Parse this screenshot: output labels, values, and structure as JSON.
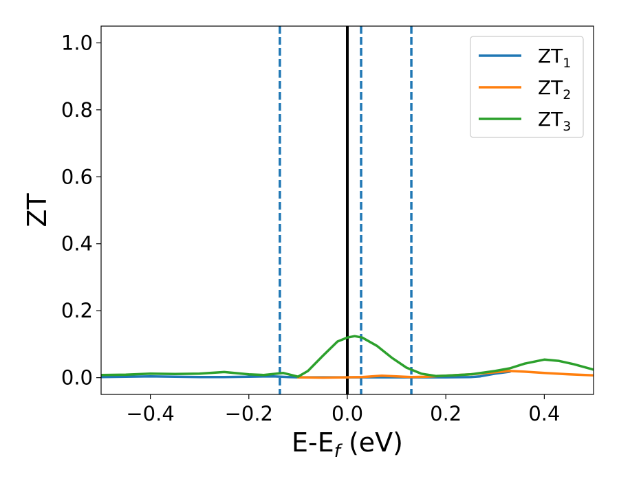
{
  "chart_data": {
    "type": "line",
    "xlabel": "E-E",
    "xlabel_sub": "f",
    "xlabel_unit": " (eV)",
    "ylabel": "ZT",
    "xlim": [
      -0.5,
      0.5
    ],
    "ylim": [
      -0.05,
      1.05
    ],
    "x_ticks": [
      -0.4,
      -0.2,
      0.0,
      0.2,
      0.4
    ],
    "x_tick_labels": [
      "−0.4",
      "−0.2",
      "0.0",
      "0.2",
      "0.4"
    ],
    "y_ticks": [
      0.0,
      0.2,
      0.4,
      0.6,
      0.8,
      1.0
    ],
    "y_tick_labels": [
      "0.0",
      "0.2",
      "0.4",
      "0.6",
      "0.8",
      "1.0"
    ],
    "legend_position": "top-right",
    "grid": false,
    "vlines": [
      {
        "x": -0.137,
        "style": "dashed",
        "color": "#1f77b4"
      },
      {
        "x": 0.0,
        "style": "solid",
        "color": "#000000"
      },
      {
        "x": 0.028,
        "style": "dashed",
        "color": "#1f77b4"
      },
      {
        "x": 0.13,
        "style": "dashed",
        "color": "#1f77b4"
      }
    ],
    "series": [
      {
        "name": "ZT",
        "name_sub": "1",
        "color": "#1f77b4",
        "points": [
          [
            -0.5,
            0.002
          ],
          [
            -0.45,
            0.003
          ],
          [
            -0.4,
            0.004
          ],
          [
            -0.35,
            0.003
          ],
          [
            -0.3,
            0.002
          ],
          [
            -0.25,
            0.002
          ],
          [
            -0.2,
            0.003
          ],
          [
            -0.15,
            0.004
          ],
          [
            -0.12,
            0.002
          ],
          [
            -0.1,
            0.001
          ],
          [
            0.2,
            0.001
          ],
          [
            0.25,
            0.002
          ],
          [
            0.27,
            0.004
          ],
          [
            0.3,
            0.012
          ],
          [
            0.33,
            0.018
          ]
        ]
      },
      {
        "name": "ZT",
        "name_sub": "2",
        "color": "#ff7f0e",
        "points": [
          [
            -0.1,
            0.001
          ],
          [
            -0.05,
            0.0
          ],
          [
            0.0,
            0.001
          ],
          [
            0.03,
            0.002
          ],
          [
            0.07,
            0.006
          ],
          [
            0.1,
            0.004
          ],
          [
            0.13,
            0.002
          ],
          [
            0.16,
            0.003
          ],
          [
            0.2,
            0.006
          ],
          [
            0.25,
            0.01
          ],
          [
            0.3,
            0.016
          ],
          [
            0.33,
            0.02
          ],
          [
            0.36,
            0.018
          ],
          [
            0.4,
            0.014
          ],
          [
            0.45,
            0.01
          ],
          [
            0.5,
            0.007
          ]
        ]
      },
      {
        "name": "ZT",
        "name_sub": "3",
        "color": "#2ca02c",
        "points": [
          [
            -0.5,
            0.008
          ],
          [
            -0.45,
            0.009
          ],
          [
            -0.4,
            0.012
          ],
          [
            -0.35,
            0.011
          ],
          [
            -0.3,
            0.012
          ],
          [
            -0.25,
            0.017
          ],
          [
            -0.2,
            0.01
          ],
          [
            -0.17,
            0.008
          ],
          [
            -0.13,
            0.014
          ],
          [
            -0.1,
            0.003
          ],
          [
            -0.08,
            0.02
          ],
          [
            -0.05,
            0.065
          ],
          [
            -0.02,
            0.108
          ],
          [
            0.0,
            0.12
          ],
          [
            0.015,
            0.124
          ],
          [
            0.03,
            0.12
          ],
          [
            0.06,
            0.095
          ],
          [
            0.09,
            0.06
          ],
          [
            0.12,
            0.03
          ],
          [
            0.15,
            0.012
          ],
          [
            0.18,
            0.005
          ],
          [
            0.2,
            0.006
          ],
          [
            0.25,
            0.01
          ],
          [
            0.3,
            0.02
          ],
          [
            0.33,
            0.028
          ],
          [
            0.36,
            0.042
          ],
          [
            0.4,
            0.054
          ],
          [
            0.43,
            0.05
          ],
          [
            0.46,
            0.04
          ],
          [
            0.5,
            0.024
          ]
        ]
      }
    ]
  }
}
